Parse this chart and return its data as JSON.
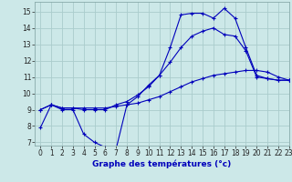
{
  "xlabel": "Graphe des températures (°c)",
  "background_color": "#cce8e8",
  "grid_color": "#aacccc",
  "line_color": "#0000bb",
  "ylim": [
    6.8,
    15.6
  ],
  "xlim": [
    -0.5,
    23
  ],
  "yticks": [
    7,
    8,
    9,
    10,
    11,
    12,
    13,
    14,
    15
  ],
  "xticks": [
    0,
    1,
    2,
    3,
    4,
    5,
    6,
    7,
    8,
    9,
    10,
    11,
    12,
    13,
    14,
    15,
    16,
    17,
    18,
    19,
    20,
    21,
    22,
    23
  ],
  "line1_x": [
    0,
    1,
    2,
    3,
    4,
    5,
    6,
    7,
    8,
    9,
    10,
    11,
    12,
    13,
    14,
    15,
    16,
    17,
    18,
    19,
    20,
    21,
    22,
    23
  ],
  "line1_y": [
    7.9,
    9.3,
    9.0,
    9.0,
    7.5,
    7.0,
    6.7,
    6.6,
    9.3,
    9.8,
    10.5,
    11.1,
    12.8,
    14.8,
    14.9,
    14.9,
    14.6,
    15.2,
    14.6,
    12.8,
    11.1,
    10.9,
    10.8,
    10.8
  ],
  "line2_x": [
    0,
    1,
    2,
    3,
    4,
    5,
    6,
    7,
    8,
    9,
    10,
    11,
    12,
    13,
    14,
    15,
    16,
    17,
    18,
    19,
    20,
    21,
    22,
    23
  ],
  "line2_y": [
    9.0,
    9.3,
    9.1,
    9.1,
    9.1,
    9.1,
    9.1,
    9.2,
    9.3,
    9.4,
    9.6,
    9.8,
    10.1,
    10.4,
    10.7,
    10.9,
    11.1,
    11.2,
    11.3,
    11.4,
    11.4,
    11.3,
    11.0,
    10.8
  ],
  "line3_x": [
    0,
    1,
    2,
    3,
    4,
    5,
    6,
    7,
    8,
    9,
    10,
    11,
    12,
    13,
    14,
    15,
    16,
    17,
    18,
    19,
    20,
    21,
    22,
    23
  ],
  "line3_y": [
    9.0,
    9.3,
    9.1,
    9.1,
    9.0,
    9.0,
    9.0,
    9.3,
    9.5,
    9.9,
    10.4,
    11.1,
    11.9,
    12.8,
    13.5,
    13.8,
    14.0,
    13.6,
    13.5,
    12.6,
    11.0,
    10.9,
    10.8,
    10.8
  ]
}
